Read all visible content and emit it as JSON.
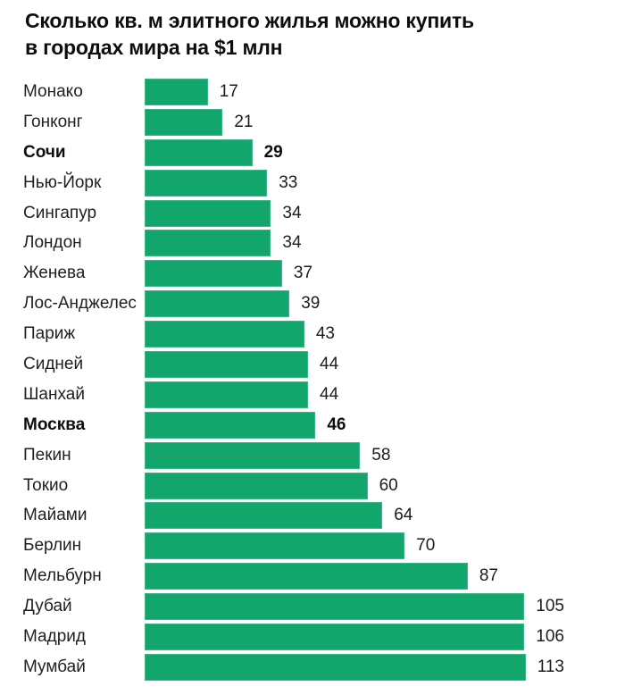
{
  "title": {
    "line1": "Сколько кв. м элитного жилья можно купить",
    "line2": "в городах мира на $1 млн"
  },
  "colors": {
    "bar": "#12a66c",
    "title_text": "#0d0d0d",
    "label_text": "#1f1f1f",
    "background": "#ffffff"
  },
  "chart_data": {
    "type": "bar",
    "orientation": "horizontal",
    "title": "Сколько кв. м элитного жилья можно купить в городах мира на $1 млн",
    "categories": [
      "Монако",
      "Гонконг",
      "Сочи",
      "Нью-Йорк",
      "Сингапур",
      "Лондон",
      "Женева",
      "Лос-Анджелес",
      "Париж",
      "Сидней",
      "Шанхай",
      "Москва",
      "Пекин",
      "Токио",
      "Майами",
      "Берлин",
      "Мельбурн",
      "Дубай",
      "Мадрид",
      "Мумбай"
    ],
    "values": [
      17,
      21,
      29,
      33,
      34,
      34,
      37,
      39,
      43,
      44,
      44,
      46,
      58,
      60,
      64,
      70,
      87,
      105,
      106,
      113
    ],
    "highlighted_categories": [
      "Сочи",
      "Москва"
    ],
    "value_axis_max": 113,
    "grid": false,
    "legend": false,
    "data_labels": "outside-end"
  }
}
